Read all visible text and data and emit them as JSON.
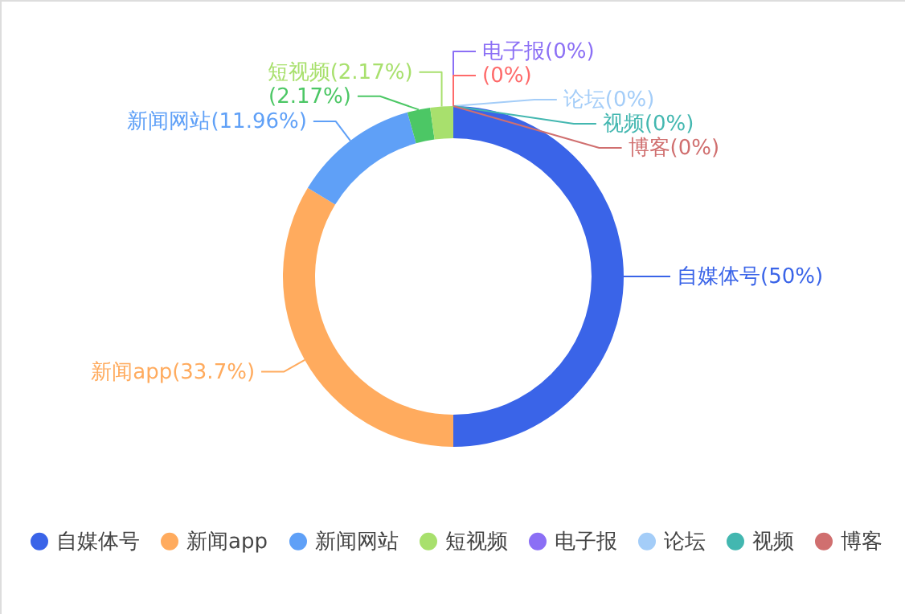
{
  "chart_data": {
    "type": "donut",
    "categories": [
      "自媒体号",
      "新闻app",
      "新闻网站",
      null,
      "短视频",
      "电子报",
      null,
      "论坛",
      "视频",
      "博客"
    ],
    "values": [
      50,
      33.7,
      11.96,
      2.17,
      2.17,
      0,
      0,
      0,
      0,
      0
    ],
    "value_labels": [
      "(50%)",
      "(33.7%)",
      "(11.96%)",
      "(2.17%)",
      "(2.17%)",
      "(0%)",
      "(0%)",
      "(0%)",
      "(0%)",
      "(0%)"
    ],
    "colors": [
      "#3a64e8",
      "#ffab5e",
      "#5fa0f7",
      "#4cc765",
      "#a8e06d",
      "#8b6ff5",
      "#fe6a6a",
      "#a4cdf8",
      "#43b7b0",
      "#d06f6f"
    ],
    "legend": "bottom"
  }
}
